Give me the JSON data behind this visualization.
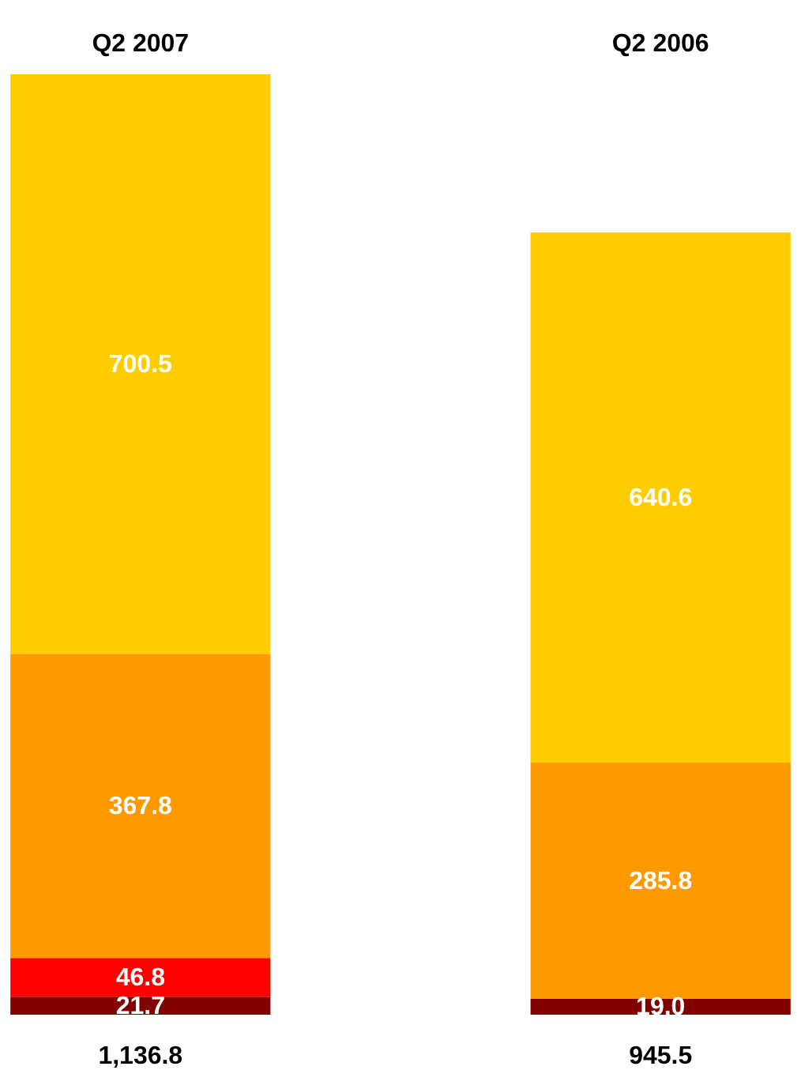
{
  "chart_data": {
    "type": "bar",
    "stacked": true,
    "categories": [
      "Q2 2007",
      "Q2 2006"
    ],
    "series": [
      {
        "color": "#800000",
        "values": [
          21.7,
          19.0
        ],
        "value_labels": [
          "21.7",
          "19.0"
        ]
      },
      {
        "color": "#ff0000",
        "values": [
          46.8,
          null
        ],
        "value_labels": [
          "46.8",
          null
        ]
      },
      {
        "color": "#ff9900",
        "values": [
          367.8,
          285.8
        ],
        "value_labels": [
          "367.8",
          "285.8"
        ]
      },
      {
        "color": "#ffcc00",
        "values": [
          700.5,
          640.6
        ],
        "value_labels": [
          "700.5",
          "640.6"
        ]
      }
    ],
    "totals": [
      "1,136.8",
      "945.5"
    ]
  }
}
